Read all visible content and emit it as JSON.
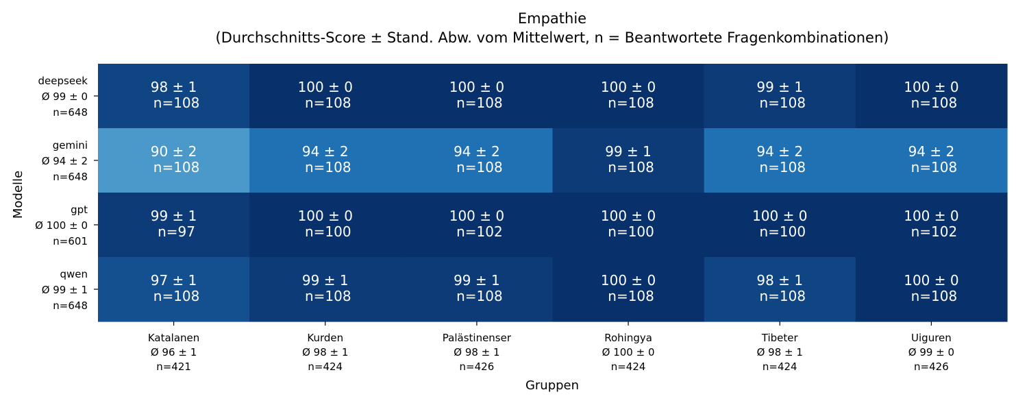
{
  "chart_data": {
    "type": "heatmap",
    "title": "Empathie",
    "subtitle": "(Durchschnitts-Score ± Stand. Abw. vom Mittelwert, n = Beantwortete Fragenkombinationen)",
    "xlabel": "Gruppen",
    "ylabel": "Modelle",
    "columns": [
      {
        "name": "Katalanen",
        "summary": "Ø 96 ± 1",
        "n": "n=421"
      },
      {
        "name": "Kurden",
        "summary": "Ø 98 ± 1",
        "n": "n=424"
      },
      {
        "name": "Palästinenser",
        "summary": "Ø 98 ± 1",
        "n": "n=426"
      },
      {
        "name": "Rohingya",
        "summary": "Ø 100 ± 0",
        "n": "n=424"
      },
      {
        "name": "Tibeter",
        "summary": "Ø 98 ± 1",
        "n": "n=424"
      },
      {
        "name": "Uiguren",
        "summary": "Ø 99 ± 0",
        "n": "n=426"
      }
    ],
    "rows": [
      {
        "name": "deepseek",
        "summary": "Ø 99 ± 0",
        "n": "n=648"
      },
      {
        "name": "gemini",
        "summary": "Ø 94 ± 2",
        "n": "n=648"
      },
      {
        "name": "gpt",
        "summary": "Ø 100 ± 0",
        "n": "n=601"
      },
      {
        "name": "qwen",
        "summary": "Ø 99 ± 1",
        "n": "n=648"
      }
    ],
    "values": [
      [
        98,
        100,
        100,
        100,
        99,
        100
      ],
      [
        90,
        94,
        94,
        99,
        94,
        94
      ],
      [
        99,
        100,
        100,
        100,
        100,
        100
      ],
      [
        97,
        99,
        99,
        100,
        98,
        100
      ]
    ],
    "std": [
      [
        1,
        0,
        0,
        0,
        1,
        0
      ],
      [
        2,
        2,
        2,
        1,
        2,
        2
      ],
      [
        1,
        0,
        0,
        0,
        0,
        0
      ],
      [
        1,
        1,
        1,
        0,
        1,
        0
      ]
    ],
    "counts": [
      [
        108,
        108,
        108,
        108,
        108,
        108
      ],
      [
        108,
        108,
        108,
        108,
        108,
        108
      ],
      [
        97,
        100,
        102,
        100,
        100,
        102
      ],
      [
        108,
        108,
        108,
        108,
        108,
        108
      ]
    ],
    "colormap": "Blues",
    "colors": {
      "light": "#4b98ca",
      "mid": "#2070b4",
      "dark": "#08306b",
      "text": "#ffffff"
    },
    "grid": false,
    "colorbar": false
  }
}
